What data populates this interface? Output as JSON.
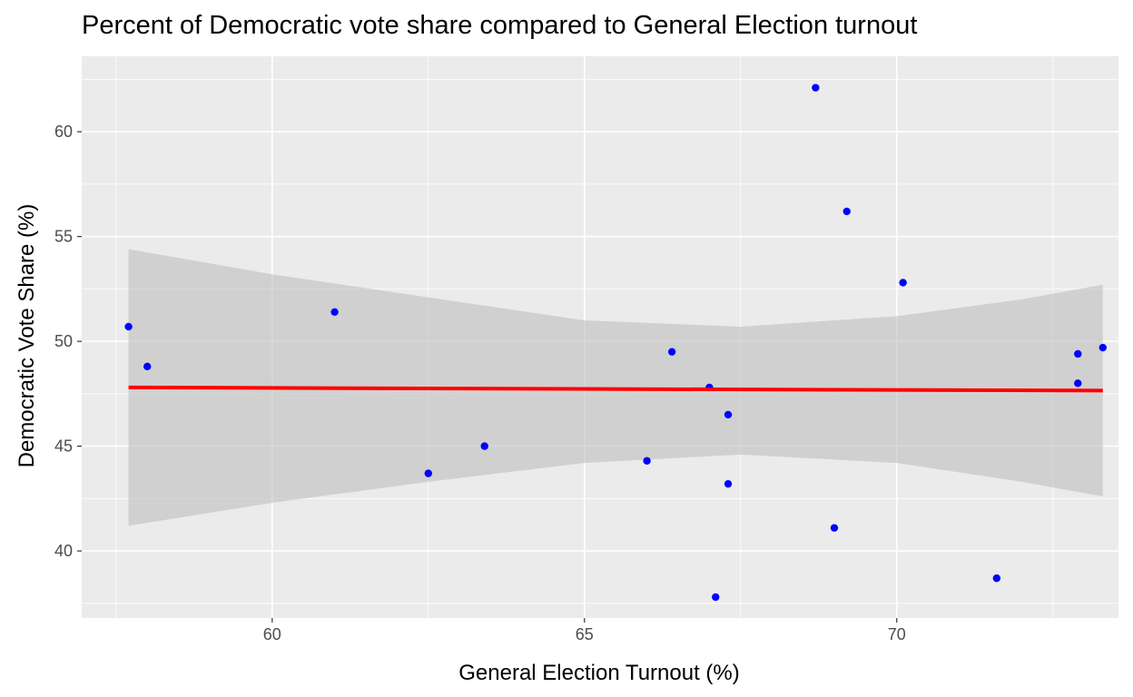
{
  "chart_data": {
    "type": "scatter",
    "title": "Percent of Democratic vote share compared to General Election turnout",
    "xlabel": "General Election Turnout (%)",
    "ylabel": "Democratic Vote Share (%)",
    "xlim": [
      56.95,
      73.55
    ],
    "ylim": [
      36.8,
      63.6
    ],
    "x_ticks": [
      60,
      65,
      70
    ],
    "y_ticks": [
      40,
      45,
      50,
      55,
      60
    ],
    "x_tick_labels": [
      "60",
      "65",
      "70"
    ],
    "y_tick_labels": [
      "40",
      "45",
      "50",
      "55",
      "60"
    ],
    "grid": true,
    "points": [
      {
        "x": 57.7,
        "y": 50.7
      },
      {
        "x": 58.0,
        "y": 48.8
      },
      {
        "x": 61.0,
        "y": 51.4
      },
      {
        "x": 62.5,
        "y": 43.7
      },
      {
        "x": 63.4,
        "y": 45.0
      },
      {
        "x": 66.0,
        "y": 44.3
      },
      {
        "x": 66.4,
        "y": 49.5
      },
      {
        "x": 67.0,
        "y": 47.8
      },
      {
        "x": 67.1,
        "y": 37.8
      },
      {
        "x": 67.3,
        "y": 43.2
      },
      {
        "x": 67.3,
        "y": 46.5
      },
      {
        "x": 68.7,
        "y": 62.1
      },
      {
        "x": 69.0,
        "y": 41.1
      },
      {
        "x": 69.2,
        "y": 56.2
      },
      {
        "x": 70.1,
        "y": 52.8
      },
      {
        "x": 71.6,
        "y": 38.7
      },
      {
        "x": 72.9,
        "y": 49.4
      },
      {
        "x": 72.9,
        "y": 48.0
      },
      {
        "x": 73.3,
        "y": 49.7
      }
    ],
    "trend_line": {
      "x_range": [
        57.7,
        73.3
      ],
      "y_start": 47.8,
      "y_end": 47.65
    },
    "confidence_band": [
      {
        "x": 57.7,
        "lower": 41.2,
        "upper": 54.4
      },
      {
        "x": 60.0,
        "lower": 42.3,
        "upper": 53.2
      },
      {
        "x": 62.5,
        "lower": 43.3,
        "upper": 52.1
      },
      {
        "x": 65.0,
        "lower": 44.2,
        "upper": 51.0
      },
      {
        "x": 67.5,
        "lower": 44.6,
        "upper": 50.7
      },
      {
        "x": 70.0,
        "lower": 44.2,
        "upper": 51.2
      },
      {
        "x": 72.0,
        "lower": 43.3,
        "upper": 52.0
      },
      {
        "x": 73.3,
        "lower": 42.6,
        "upper": 52.7
      }
    ],
    "colors": {
      "panel": "#ebebeb",
      "grid": "#ffffff",
      "points": "#0000ff",
      "trend": "#ff0000",
      "band": "#bebebe"
    }
  }
}
